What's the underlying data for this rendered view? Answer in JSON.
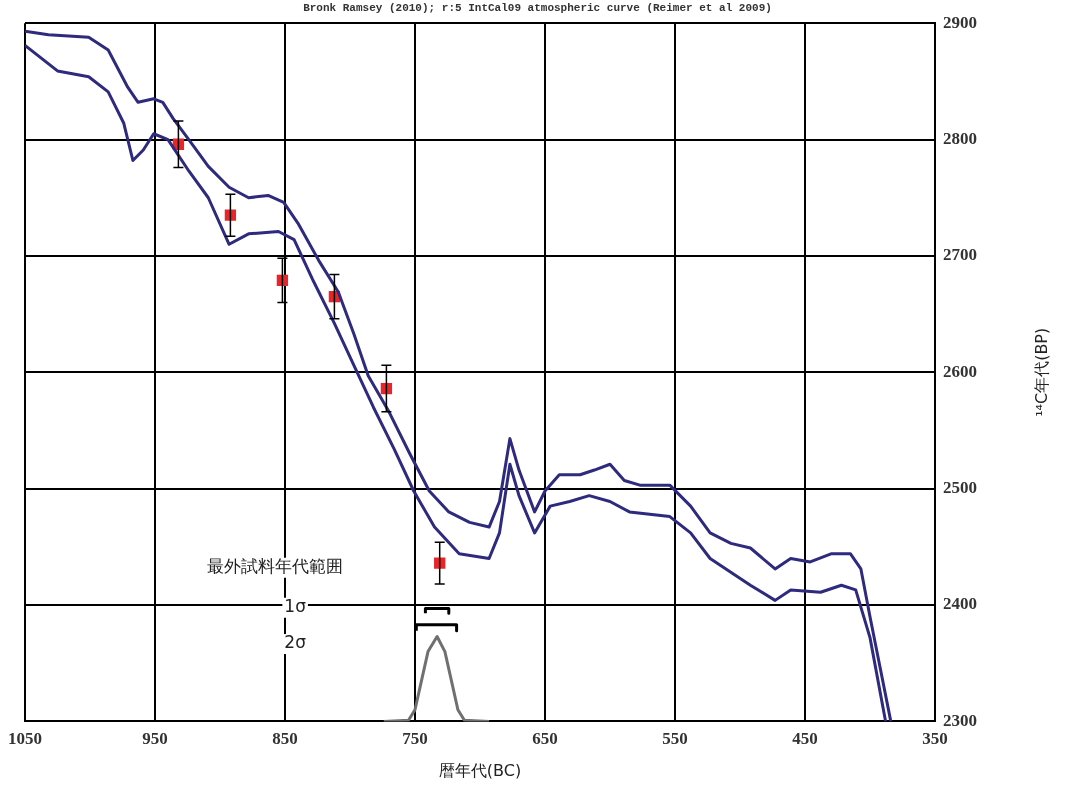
{
  "chart_data": {
    "type": "line",
    "title": "Bronk Ramsey (2010); r:5 IntCal09 atmospheric curve (Reimer et al 2009)",
    "xlabel": "暦年代(BC)",
    "ylabel": "¹⁴C年代(BP)",
    "xlim": [
      1050,
      350
    ],
    "xticks": [
      1050,
      950,
      850,
      750,
      650,
      550,
      450,
      350
    ],
    "ylim": [
      2300,
      2900
    ],
    "yticks": [
      2300,
      2400,
      2500,
      2600,
      2700,
      2800,
      2900
    ],
    "grid": true,
    "legend": false,
    "marker": "none",
    "series": [
      {
        "color": "#2e2a7e",
        "x": [
          1050,
          1032,
          1001,
          986,
          971,
          963,
          951,
          944,
          936,
          924,
          909,
          893,
          878,
          863,
          851,
          840,
          824,
          809,
          797,
          786,
          770,
          754,
          739,
          724,
          708,
          693,
          685,
          677,
          670,
          658,
          650,
          639,
          623,
          612,
          600,
          589,
          577,
          554,
          538,
          523,
          507,
          492,
          473,
          461,
          446,
          430,
          415,
          407,
          400,
          392,
          384
        ],
        "values": [
          2893,
          2890,
          2888,
          2877,
          2845,
          2832,
          2835,
          2832,
          2818,
          2800,
          2777,
          2759,
          2750,
          2752,
          2746,
          2728,
          2696,
          2669,
          2633,
          2597,
          2566,
          2530,
          2498,
          2480,
          2471,
          2467,
          2489,
          2543,
          2516,
          2480,
          2498,
          2512,
          2512,
          2516,
          2521,
          2507,
          2503,
          2503,
          2485,
          2462,
          2453,
          2449,
          2431,
          2440,
          2437,
          2444,
          2444,
          2431,
          2390,
          2345,
          2300
        ]
      },
      {
        "color": "#2e2a7e",
        "x": [
          1050,
          1025,
          1001,
          986,
          974,
          967,
          959,
          951,
          940,
          924,
          909,
          893,
          878,
          855,
          843,
          828,
          812,
          797,
          782,
          766,
          751,
          735,
          716,
          693,
          685,
          677,
          670,
          658,
          646,
          631,
          616,
          600,
          585,
          554,
          538,
          523,
          492,
          473,
          461,
          438,
          422,
          411,
          400,
          388
        ],
        "values": [
          2881,
          2859,
          2854,
          2841,
          2814,
          2782,
          2791,
          2805,
          2800,
          2773,
          2750,
          2710,
          2719,
          2721,
          2714,
          2678,
          2642,
          2606,
          2570,
          2534,
          2498,
          2467,
          2444,
          2440,
          2462,
          2521,
          2494,
          2462,
          2485,
          2489,
          2494,
          2489,
          2480,
          2476,
          2462,
          2440,
          2417,
          2404,
          2413,
          2411,
          2417,
          2413,
          2372,
          2300
        ]
      },
      {
        "type": "line",
        "color": "#707070",
        "x": [
          774,
          755,
          750,
          745,
          740,
          733,
          727,
          722,
          717,
          712,
          693
        ],
        "values": [
          2300,
          2301,
          2310,
          2335,
          2360,
          2373,
          2360,
          2335,
          2310,
          2301,
          2300
        ]
      },
      {
        "type": "line",
        "color": "#000000",
        "x": [
          742,
          742,
          724,
          724
        ],
        "values": [
          2393,
          2397,
          2397,
          2393
        ]
      },
      {
        "type": "line",
        "color": "#000000",
        "x": [
          749,
          749,
          718,
          718
        ],
        "values": [
          2378,
          2383,
          2383,
          2378
        ]
      },
      {
        "type": "scatter",
        "marker": "square",
        "color": "#e8262a",
        "x": [
          932,
          892,
          852,
          812,
          772,
          731
        ],
        "values": [
          2796,
          2735,
          2679,
          2665,
          2586,
          2436
        ],
        "errors": [
          20,
          18,
          19,
          19,
          20,
          18
        ]
      }
    ],
    "annotations": [
      "最外試料年代範囲",
      "1σ",
      "2σ"
    ]
  }
}
